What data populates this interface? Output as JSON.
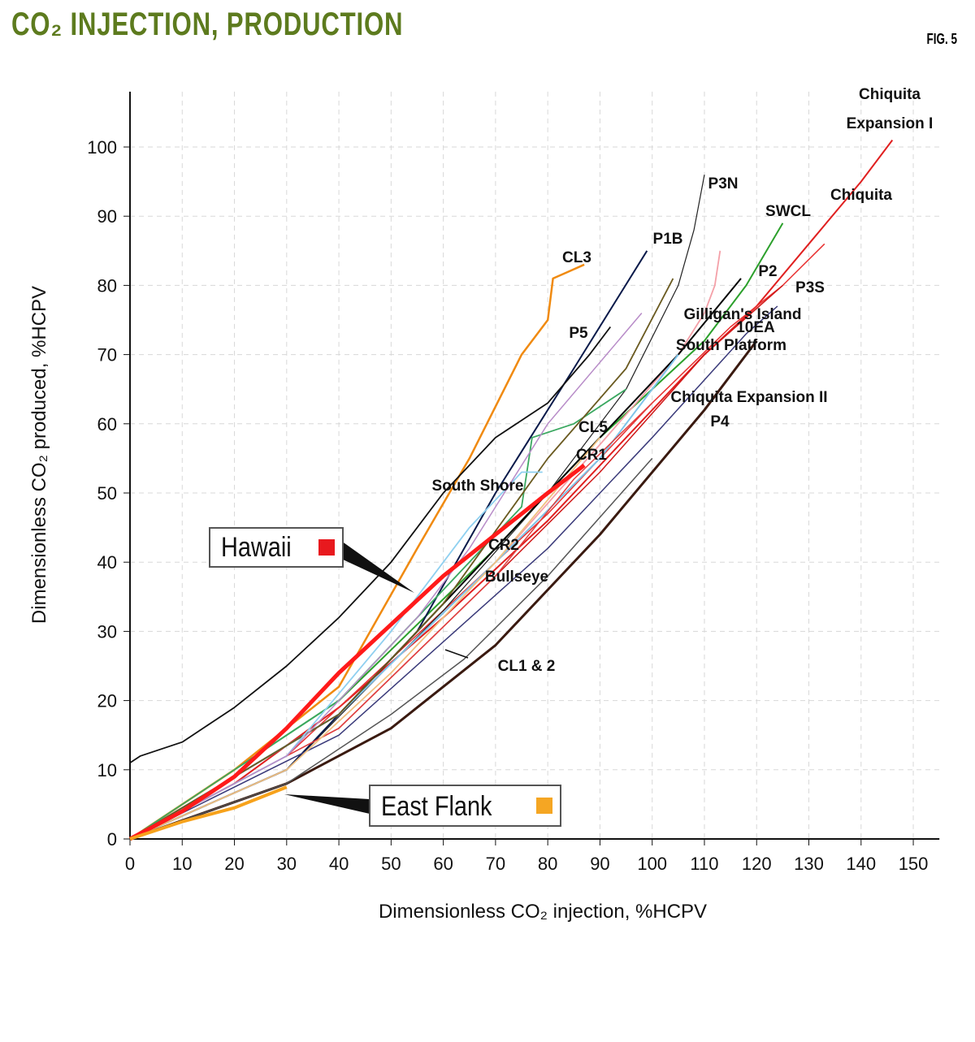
{
  "title": "CO₂ INJECTION, PRODUCTION",
  "figure_label": "FIG. 5",
  "chart_data": {
    "type": "line",
    "xlabel": "Dimensionless CO₂ injection, %HCPV",
    "ylabel": "Dimensionless CO₂ produced, %HCPV",
    "xlim": [
      0,
      155
    ],
    "ylim": [
      0,
      108
    ],
    "xticks": [
      0,
      10,
      20,
      30,
      40,
      50,
      60,
      70,
      80,
      90,
      100,
      110,
      120,
      130,
      140,
      150
    ],
    "yticks": [
      0,
      10,
      20,
      30,
      40,
      50,
      60,
      70,
      80,
      90,
      100
    ],
    "grid": true,
    "series": [
      {
        "name": "Chiquita Expansion I",
        "color": "#e02020",
        "width": 2,
        "x": [
          0,
          20,
          40,
          60,
          80,
          100,
          110,
          120,
          130,
          140,
          146
        ],
        "y": [
          0,
          8,
          19,
          32,
          46,
          62,
          70,
          77,
          86,
          95,
          101
        ]
      },
      {
        "name": "Chiquita",
        "color": "#e83030",
        "width": 1.5,
        "x": [
          0,
          30,
          60,
          80,
          100,
          115,
          125,
          133
        ],
        "y": [
          0,
          12,
          33,
          47,
          63,
          74,
          80,
          86
        ]
      },
      {
        "name": "P3N",
        "color": "#222222",
        "width": 1.2,
        "x": [
          0,
          30,
          60,
          80,
          95,
          105,
          108,
          110
        ],
        "y": [
          0,
          10,
          33,
          50,
          65,
          80,
          88,
          96
        ]
      },
      {
        "name": "SWCL",
        "color": "#2ca02c",
        "width": 2,
        "x": [
          0,
          40,
          70,
          90,
          110,
          118,
          125
        ],
        "y": [
          0,
          20,
          42,
          58,
          72,
          80,
          89
        ]
      },
      {
        "name": "P1B",
        "color": "#0a1a4a",
        "width": 2,
        "x": [
          0,
          30,
          55,
          70,
          85,
          99
        ],
        "y": [
          0,
          10,
          30,
          50,
          68,
          85
        ]
      },
      {
        "name": "CL3",
        "color": "#f08a10",
        "width": 2.5,
        "x": [
          0,
          20,
          40,
          55,
          65,
          75,
          80,
          81,
          84,
          87
        ],
        "y": [
          0,
          10,
          22,
          42,
          55,
          70,
          75,
          81,
          82,
          83
        ]
      },
      {
        "name": "P5",
        "color": "#111111",
        "width": 1.8,
        "x": [
          0,
          2,
          10,
          20,
          30,
          40,
          50,
          60,
          70,
          80,
          88,
          92
        ],
        "y": [
          11,
          12,
          14,
          19,
          25,
          32,
          40,
          50,
          58,
          63,
          70,
          74
        ]
      },
      {
        "name": "Gilligan's Island",
        "color": "#f4a0a8",
        "width": 1.8,
        "x": [
          0,
          40,
          70,
          90,
          105,
          110,
          112,
          113
        ],
        "y": [
          0,
          18,
          40,
          57,
          70,
          76,
          80,
          85
        ]
      },
      {
        "name": "P2",
        "color": "#000000",
        "width": 2,
        "x": [
          0,
          40,
          70,
          90,
          105,
          117
        ],
        "y": [
          0,
          18,
          42,
          58,
          70,
          81
        ]
      },
      {
        "name": "P3S",
        "color": "#d01818",
        "width": 1.5,
        "x": [
          0,
          40,
          70,
          90,
          110,
          125
        ],
        "y": [
          0,
          16,
          38,
          53,
          70,
          80
        ]
      },
      {
        "name": "10EA",
        "color": "#3a3a7a",
        "width": 1.5,
        "x": [
          0,
          40,
          80,
          100,
          118,
          124
        ],
        "y": [
          0,
          15,
          42,
          58,
          73,
          77
        ]
      },
      {
        "name": "South Platform",
        "color": "#7fc4ea",
        "width": 2,
        "x": [
          0,
          40,
          70,
          90,
          105
        ],
        "y": [
          0,
          18,
          40,
          55,
          70
        ]
      },
      {
        "name": "Chiquita Expansion II",
        "color": "#e04040",
        "width": 1.5,
        "x": [
          0,
          40,
          70,
          85,
          100
        ],
        "y": [
          0,
          16,
          38,
          52,
          63
        ]
      },
      {
        "name": "P4",
        "color": "#3a1a10",
        "width": 3,
        "x": [
          0,
          30,
          50,
          70,
          90,
          110,
          120
        ],
        "y": [
          0,
          8,
          16,
          28,
          44,
          62,
          72
        ]
      },
      {
        "name": "CL5",
        "color": "#3aa860",
        "width": 1.8,
        "x": [
          0,
          40,
          60,
          75,
          77,
          85,
          95
        ],
        "y": [
          0,
          20,
          36,
          48,
          58,
          60,
          65
        ]
      },
      {
        "name": "CR1",
        "color": "#6a5a20",
        "width": 1.8,
        "x": [
          0,
          40,
          60,
          80,
          95,
          104
        ],
        "y": [
          0,
          18,
          34,
          55,
          68,
          81
        ]
      },
      {
        "name": "South Shore",
        "color": "#8fd0f0",
        "width": 1.8,
        "x": [
          0,
          30,
          50,
          65,
          75,
          79
        ],
        "y": [
          0,
          12,
          30,
          45,
          53,
          53
        ]
      },
      {
        "name": "CR2",
        "color": "#b88cc8",
        "width": 1.5,
        "x": [
          0,
          30,
          55,
          65,
          80,
          98
        ],
        "y": [
          0,
          12,
          32,
          42,
          60,
          76
        ]
      },
      {
        "name": "Bullseye",
        "color": "#f0c080",
        "width": 1.8,
        "x": [
          0,
          30,
          50,
          70,
          90
        ],
        "y": [
          0,
          10,
          24,
          40,
          58
        ]
      },
      {
        "name": "CL1 & 2",
        "color": "#555555",
        "width": 1.5,
        "x": [
          0,
          30,
          50,
          64,
          80,
          100
        ],
        "y": [
          0,
          8,
          18,
          26,
          38,
          55
        ]
      },
      {
        "name": "Hawaii",
        "color": "#ff1a1a",
        "width": 5,
        "x": [
          0,
          10,
          20,
          30,
          40,
          50,
          60,
          70,
          80,
          87
        ],
        "y": [
          0,
          4,
          9,
          16,
          24,
          31,
          38,
          44,
          50,
          54
        ]
      },
      {
        "name": "East Flank",
        "color": "#f7a21b",
        "width": 4,
        "x": [
          0,
          10,
          20,
          25,
          30
        ],
        "y": [
          0,
          2.5,
          4.5,
          6,
          7.5
        ]
      }
    ],
    "annotations": [
      "Chiquita\nExpansion I",
      "Chiquita",
      "P3N",
      "SWCL",
      "P1B",
      "CL3",
      "P2",
      "P3S",
      "Gilligan's Island",
      "10EA",
      "P5",
      "South Platform",
      "Chiquita Expansion II",
      "P4",
      "CL5",
      "CR1",
      "South Shore",
      "CR2",
      "Bullseye",
      "CL1 & 2"
    ],
    "callouts": [
      {
        "text": "Hawaii",
        "color": "#e8191e"
      },
      {
        "text": "East Flank",
        "color": "#f5a623"
      }
    ]
  }
}
